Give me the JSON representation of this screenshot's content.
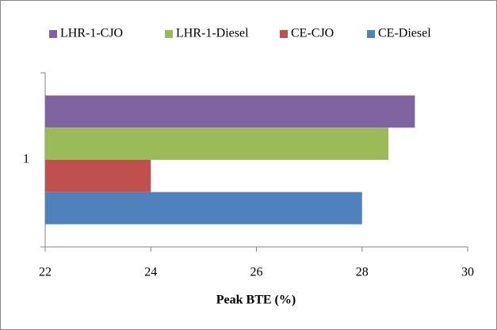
{
  "chart_data": {
    "type": "bar",
    "orientation": "horizontal",
    "categories": [
      "1"
    ],
    "series": [
      {
        "name": "LHR-1-CJO",
        "color": "#8064a2",
        "values": [
          29
        ]
      },
      {
        "name": "LHR-1-Diesel",
        "color": "#9bbb59",
        "values": [
          28.5
        ]
      },
      {
        "name": "CE-CJO",
        "color": "#c0504d",
        "values": [
          24
        ]
      },
      {
        "name": "CE-Diesel",
        "color": "#4f81bd",
        "values": [
          28
        ]
      }
    ],
    "x_label": "Peak BTE (%)",
    "xlim": [
      22,
      30
    ],
    "xticks": [
      22,
      24,
      26,
      28,
      30
    ],
    "legend": "top"
  }
}
